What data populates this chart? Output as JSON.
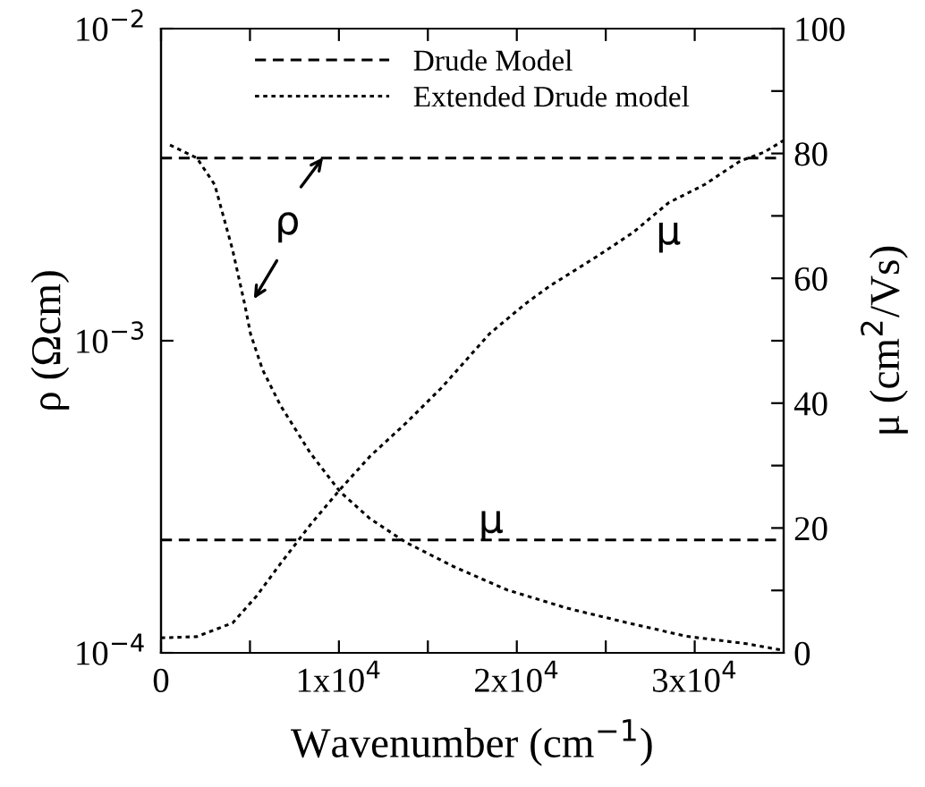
{
  "chart_data": {
    "type": "line",
    "xlabel": "Wavenumber (cm$^{−1}$)",
    "ylabel": "ρ (Ωcm)",
    "y2label": "μ (cm$^{2}$/Vs)",
    "log": "y",
    "legend": "top",
    "grid": false,
    "xlim": [
      0,
      35000
    ],
    "xticks": [
      {
        "value": 0,
        "label": "0"
      },
      {
        "value": 5000,
        "label": null
      },
      {
        "value": 10000,
        "label": "1x10$^{4}$"
      },
      {
        "value": 15000,
        "label": null
      },
      {
        "value": 20000,
        "label": "2x10$^{4}$"
      },
      {
        "value": 25000,
        "label": null
      },
      {
        "value": 30000,
        "label": "3x10$^{4}$"
      }
    ],
    "ylim": [
      0.0001,
      0.01
    ],
    "yticks": [
      {
        "value": 0.0001,
        "label": "10$^{−4}$"
      },
      {
        "value": 0.001,
        "label": "10$^{−3}$"
      },
      {
        "value": 0.01,
        "label": "10$^{−2}$"
      }
    ],
    "y2lim": [
      0,
      100
    ],
    "y2ticks": [
      0,
      {
        "value": 10,
        "label": null
      },
      20,
      {
        "value": 30,
        "label": null
      },
      40,
      {
        "value": 50,
        "label": null
      },
      60,
      {
        "value": 70,
        "label": null
      },
      80,
      {
        "value": 90,
        "label": null
      },
      100
    ],
    "series": [
      {
        "name": "Drude Model",
        "line_style": "dashed",
        "color": "#000000",
        "x": [
          0,
          35000
        ],
        "values": [
          0.00385,
          0.00385
        ]
      },
      {
        "name": "Extended Drude model",
        "line_style": "dotted",
        "color": "#000000",
        "x": [
          503,
          2014,
          3021,
          4028,
          4703,
          5035,
          5710,
          6717,
          8389,
          10070,
          11752,
          13766,
          16445,
          19466,
          22830,
          26183,
          29537,
          32900,
          34915
        ],
        "values": [
          0.00424,
          0.00385,
          0.00316,
          0.00195,
          0.00131,
          0.00105,
          0.000807,
          0.00062,
          0.000437,
          0.000328,
          0.000269,
          0.000226,
          0.000189,
          0.000159,
          0.000139,
          0.000125,
          0.000113,
          0.000107,
          0.000102
        ]
      },
      {
        "axis": "y2",
        "line_style": "dashed",
        "color": "#000000",
        "x": [
          0,
          35000
        ],
        "values": [
          18.1,
          18.1
        ]
      },
      {
        "axis": "y2",
        "line_style": "dotted",
        "color": "#000000",
        "x": [
          0,
          2014,
          4028,
          5370,
          6717,
          8389,
          10070,
          11752,
          13766,
          15780,
          18459,
          20473,
          21818,
          24502,
          26516,
          28530,
          30544,
          32558,
          33907,
          35000
        ],
        "values": [
          2.4,
          2.6,
          4.8,
          9.1,
          14.3,
          20.5,
          26.2,
          31.5,
          36.8,
          42.5,
          51.1,
          55.9,
          58.7,
          63.5,
          67.3,
          72.1,
          75.0,
          78.8,
          80.2,
          82.1
        ]
      }
    ],
    "annotations": [
      "ρ",
      "μ",
      "μ"
    ]
  }
}
